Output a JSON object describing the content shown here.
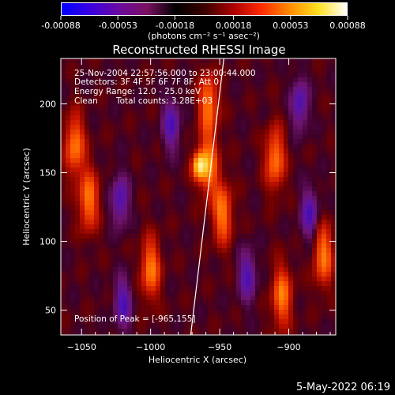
{
  "colorbar": {
    "ticks": [
      "-0.00088",
      "-0.00053",
      "-0.00018",
      "0.00018",
      "0.00053",
      "0.00088"
    ],
    "tick_values": [
      -0.00088,
      -0.00053,
      -0.00018,
      0.00018,
      0.00053,
      0.00088
    ],
    "units": "(photons cm⁻² s⁻¹ asec⁻²)",
    "colors": [
      "#0000ff",
      "#3a00e0",
      "#6a0aa0",
      "#7a1060",
      "#000000",
      "#3a0000",
      "#aa0000",
      "#ff2a00",
      "#ff8c00",
      "#ffe020",
      "#ffffff"
    ]
  },
  "chart_data": {
    "type": "heatmap",
    "title": "Reconstructed RHESSI Image",
    "xlabel": "Heliocentric X (arcsec)",
    "ylabel": "Heliocentric Y (arcsec)",
    "xlim": [
      -1065,
      -866
    ],
    "ylim": [
      32,
      233
    ],
    "x_ticks": [
      -1050,
      -1000,
      -950,
      -900
    ],
    "y_ticks": [
      50,
      100,
      150,
      200
    ],
    "x_tick_labels": [
      "−1050",
      "−1000",
      "−950",
      "−900"
    ],
    "y_tick_labels": [
      "50",
      "100",
      "150",
      "200"
    ],
    "limb_line": [
      [
        -971,
        32
      ],
      [
        -947,
        233
      ]
    ],
    "peak": [
      -965,
      155
    ],
    "annotations": {
      "time": "25-Nov-2004 22:57:56.000 to 23:00:44.000",
      "detectors": "Detectors: 3F 4F 5F 6F 7F 8F, Att 0",
      "energy": "Energy Range: 12.0 - 25.0 keV",
      "method": "Clean",
      "counts": "Total counts: 3.28E+03",
      "peak_text": "Position of Peak = [-965,155]"
    },
    "pixel_stripes": {
      "bright": [
        [
          -1045,
          130
        ],
        [
          -1000,
          80
        ],
        [
          -958,
          200
        ],
        [
          -958,
          155
        ],
        [
          -948,
          120
        ],
        [
          -910,
          160
        ],
        [
          -905,
          60
        ],
        [
          -875,
          90
        ],
        [
          -1055,
          170
        ]
      ],
      "dark": [
        [
          -1022,
          130
        ],
        [
          -1020,
          55
        ],
        [
          -985,
          185
        ],
        [
          -930,
          75
        ],
        [
          -892,
          200
        ],
        [
          -885,
          120
        ]
      ]
    }
  },
  "footer": {
    "timestamp": "5-May-2022 06:19"
  }
}
